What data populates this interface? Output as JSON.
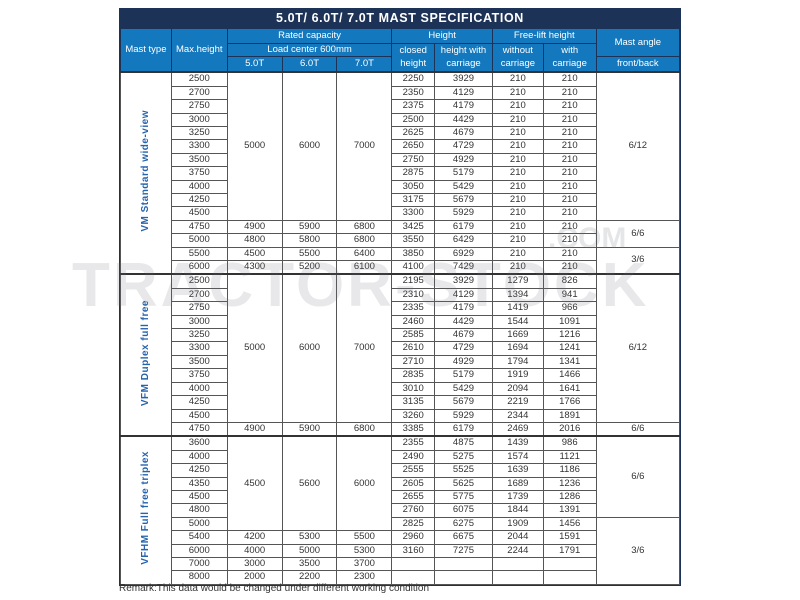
{
  "title": "5.0T/ 6.0T/ 7.0T MAST SPECIFICATION",
  "header": {
    "mast_type": "Mast type",
    "max_height": "Max.height",
    "rated_capacity": "Rated capacity",
    "load_center": "Load center 600mm",
    "capacity_cols": [
      "5.0T",
      "6.0T",
      "7.0T"
    ],
    "height_group": "Height",
    "closed_height": "closed height",
    "height_with_carriage": "height with carriage",
    "free_lift_group": "Free-lift height",
    "without_carriage": "without carriage",
    "with_carriage": "with carriage",
    "mast_angle": "Mast angle",
    "front_back": "front/back"
  },
  "colors": {
    "title_bar": "#1d3257",
    "header_blue": "#1478be",
    "section_label_blue": "#2563ae",
    "grid_line": "#555555"
  },
  "sections": [
    {
      "label": "VM Standard wide-view",
      "rows": [
        {
          "max": "2500",
          "cap": [
            "5000",
            "6000",
            "7000"
          ],
          "cap_span": 11,
          "h": [
            "2250",
            "3929",
            "210",
            "210"
          ],
          "angle": "6/12",
          "angle_span": 11
        },
        {
          "max": "2700",
          "h": [
            "2350",
            "4129",
            "210",
            "210"
          ]
        },
        {
          "max": "2750",
          "h": [
            "2375",
            "4179",
            "210",
            "210"
          ]
        },
        {
          "max": "3000",
          "h": [
            "2500",
            "4429",
            "210",
            "210"
          ]
        },
        {
          "max": "3250",
          "h": [
            "2625",
            "4679",
            "210",
            "210"
          ]
        },
        {
          "max": "3300",
          "h": [
            "2650",
            "4729",
            "210",
            "210"
          ]
        },
        {
          "max": "3500",
          "h": [
            "2750",
            "4929",
            "210",
            "210"
          ]
        },
        {
          "max": "3750",
          "h": [
            "2875",
            "5179",
            "210",
            "210"
          ]
        },
        {
          "max": "4000",
          "h": [
            "3050",
            "5429",
            "210",
            "210"
          ]
        },
        {
          "max": "4250",
          "h": [
            "3175",
            "5679",
            "210",
            "210"
          ]
        },
        {
          "max": "4500",
          "h": [
            "3300",
            "5929",
            "210",
            "210"
          ]
        },
        {
          "max": "4750",
          "cap": [
            "4900",
            "5900",
            "6800"
          ],
          "cap_span": 1,
          "h": [
            "3425",
            "6179",
            "210",
            "210"
          ],
          "angle": "6/6",
          "angle_span": 2
        },
        {
          "max": "5000",
          "cap": [
            "4800",
            "5800",
            "6800"
          ],
          "cap_span": 1,
          "h": [
            "3550",
            "6429",
            "210",
            "210"
          ]
        },
        {
          "max": "5500",
          "cap": [
            "4500",
            "5500",
            "6400"
          ],
          "cap_span": 1,
          "h": [
            "3850",
            "6929",
            "210",
            "210"
          ],
          "angle": "3/6",
          "angle_span": 2
        },
        {
          "max": "6000",
          "cap": [
            "4300",
            "5200",
            "6100"
          ],
          "cap_span": 1,
          "h": [
            "4100",
            "7429",
            "210",
            "210"
          ]
        }
      ]
    },
    {
      "label": "VFM Duplex full free",
      "rows": [
        {
          "max": "2500",
          "cap": [
            "5000",
            "6000",
            "7000"
          ],
          "cap_span": 11,
          "h": [
            "2195",
            "3929",
            "1279",
            "826"
          ],
          "angle": "6/12",
          "angle_span": 11
        },
        {
          "max": "2700",
          "h": [
            "2310",
            "4129",
            "1394",
            "941"
          ]
        },
        {
          "max": "2750",
          "h": [
            "2335",
            "4179",
            "1419",
            "966"
          ]
        },
        {
          "max": "3000",
          "h": [
            "2460",
            "4429",
            "1544",
            "1091"
          ]
        },
        {
          "max": "3250",
          "h": [
            "2585",
            "4679",
            "1669",
            "1216"
          ]
        },
        {
          "max": "3300",
          "h": [
            "2610",
            "4729",
            "1694",
            "1241"
          ]
        },
        {
          "max": "3500",
          "h": [
            "2710",
            "4929",
            "1794",
            "1341"
          ]
        },
        {
          "max": "3750",
          "h": [
            "2835",
            "5179",
            "1919",
            "1466"
          ]
        },
        {
          "max": "4000",
          "h": [
            "3010",
            "5429",
            "2094",
            "1641"
          ]
        },
        {
          "max": "4250",
          "h": [
            "3135",
            "5679",
            "2219",
            "1766"
          ]
        },
        {
          "max": "4500",
          "h": [
            "3260",
            "5929",
            "2344",
            "1891"
          ]
        },
        {
          "max": "4750",
          "cap": [
            "4900",
            "5900",
            "6800"
          ],
          "cap_span": 1,
          "h": [
            "3385",
            "6179",
            "2469",
            "2016"
          ],
          "angle": "6/6",
          "angle_span": 1
        }
      ]
    },
    {
      "label": "VFHM Full free triplex",
      "rows": [
        {
          "max": "3600",
          "cap": [
            "4500",
            "5600",
            "6000"
          ],
          "cap_span": 7,
          "h": [
            "2355",
            "4875",
            "1439",
            "986"
          ],
          "angle": "6/6",
          "angle_span": 6
        },
        {
          "max": "4000",
          "h": [
            "2490",
            "5275",
            "1574",
            "1121"
          ]
        },
        {
          "max": "4250",
          "h": [
            "2555",
            "5525",
            "1639",
            "1186"
          ]
        },
        {
          "max": "4350",
          "h": [
            "2605",
            "5625",
            "1689",
            "1236"
          ]
        },
        {
          "max": "4500",
          "h": [
            "2655",
            "5775",
            "1739",
            "1286"
          ]
        },
        {
          "max": "4800",
          "h": [
            "2760",
            "6075",
            "1844",
            "1391"
          ]
        },
        {
          "max": "5000",
          "h": [
            "2825",
            "6275",
            "1909",
            "1456"
          ],
          "angle": "3/6",
          "angle_span": 5
        },
        {
          "max": "5400",
          "cap": [
            "4200",
            "5300",
            "5500"
          ],
          "cap_span": 1,
          "h": [
            "2960",
            "6675",
            "2044",
            "1591"
          ]
        },
        {
          "max": "6000",
          "cap": [
            "4000",
            "5000",
            "5300"
          ],
          "cap_span": 1,
          "h": [
            "3160",
            "7275",
            "2244",
            "1791"
          ]
        },
        {
          "max": "7000",
          "cap": [
            "3000",
            "3500",
            "3700"
          ],
          "cap_span": 1,
          "h": [
            "",
            "",
            "",
            ""
          ]
        },
        {
          "max": "8000",
          "cap": [
            "2000",
            "2200",
            "2300"
          ],
          "cap_span": 1,
          "h": [
            "",
            "",
            "",
            ""
          ]
        }
      ]
    }
  ],
  "remark": "Remark:This data would be changed under different working condition",
  "watermark": {
    "line1": "TRACTOR-STOCK",
    "line2": ".COM"
  }
}
